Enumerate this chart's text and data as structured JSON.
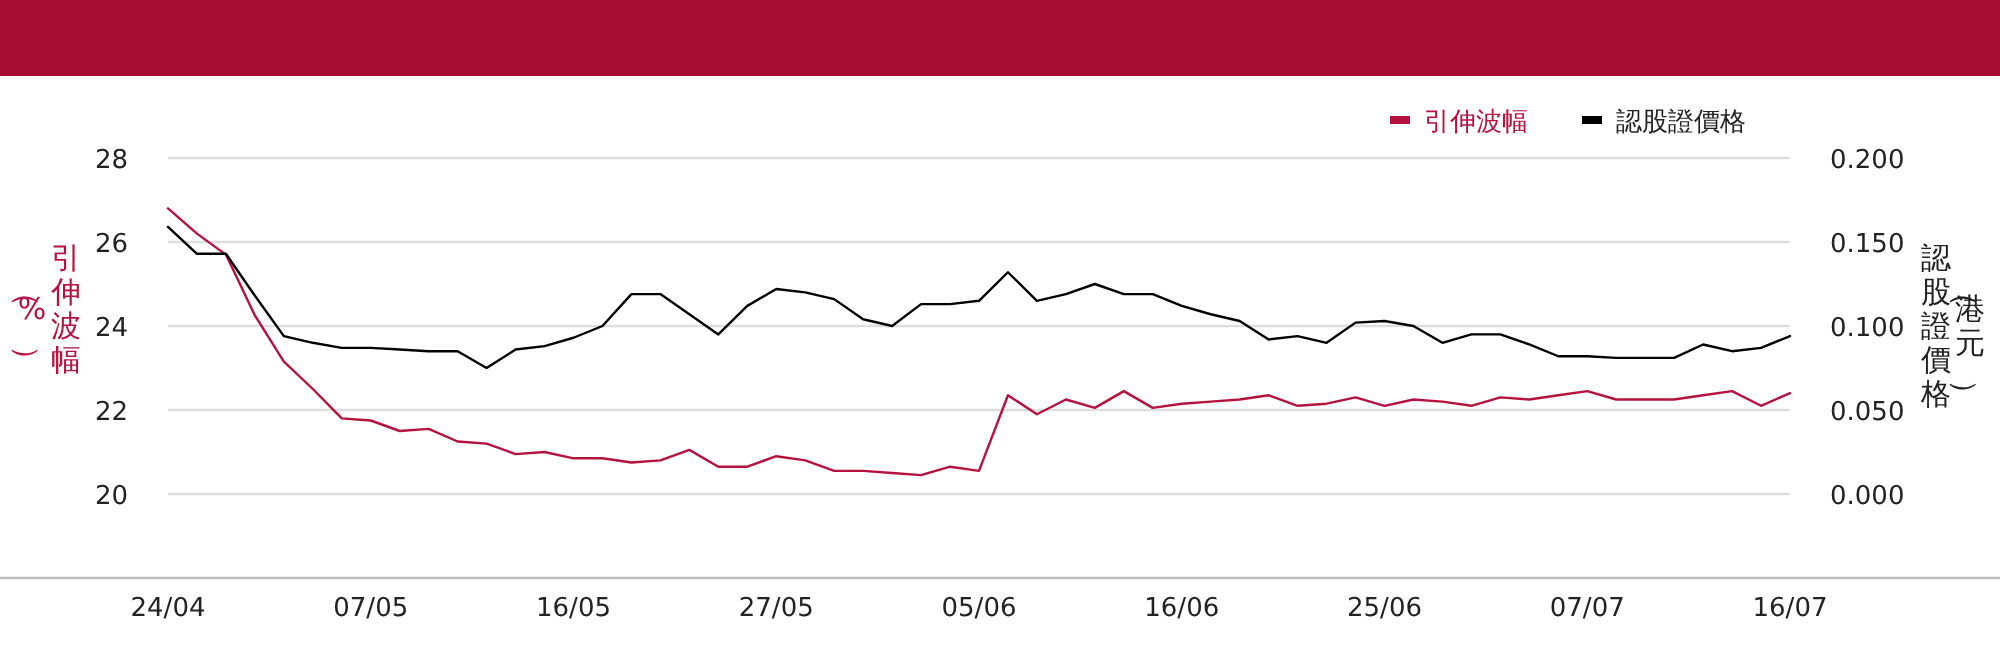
{
  "chart_data": {
    "type": "line",
    "categories": [
      "24/04",
      null,
      null,
      null,
      null,
      null,
      null,
      "07/05",
      null,
      null,
      null,
      null,
      null,
      null,
      "16/05",
      null,
      null,
      null,
      null,
      null,
      null,
      "27/05",
      null,
      null,
      null,
      null,
      null,
      null,
      "05/06",
      null,
      null,
      null,
      null,
      null,
      null,
      "16/06",
      null,
      null,
      null,
      null,
      null,
      null,
      "25/06",
      null,
      null,
      null,
      null,
      null,
      null,
      "07/07",
      null,
      null,
      null,
      null,
      null,
      null,
      "16/07"
    ],
    "ylabel": "引伸波幅（%）",
    "y2label": "認股證價格（港元）",
    "ylim": [
      18,
      28
    ],
    "yticks": [
      20,
      22,
      24,
      26,
      28
    ],
    "y2lim": [
      -0.05,
      0.2
    ],
    "y2ticks": [
      {
        "value": 0,
        "label": "0.000"
      },
      {
        "value": 0.05,
        "label": "0.050"
      },
      {
        "value": 0.1,
        "label": "0.100"
      },
      {
        "value": 0.15,
        "label": "0.150"
      },
      {
        "value": 0.2,
        "label": "0.200"
      }
    ],
    "grid": "y",
    "legend": "top right",
    "series": [
      {
        "name": "引伸波幅",
        "color": "#b5123e",
        "values": [
          26.8,
          26.2,
          25.7,
          24.25,
          23.15,
          22.5,
          21.8,
          21.75,
          21.5,
          21.55,
          21.25,
          21.2,
          20.95,
          21.0,
          20.85,
          20.85,
          20.75,
          20.8,
          21.05,
          20.65,
          20.65,
          20.9,
          20.8,
          20.55,
          20.55,
          20.5,
          20.45,
          20.65,
          20.55,
          22.35,
          21.9,
          22.25,
          22.05,
          22.45,
          22.05,
          22.15,
          22.2,
          22.25,
          22.35,
          22.1,
          22.15,
          22.3,
          22.1,
          22.25,
          22.2,
          22.1,
          22.3,
          22.25,
          22.35,
          22.45,
          22.25,
          22.25,
          22.25,
          22.35,
          22.45,
          22.1,
          22.4
        ]
      },
      {
        "name": "認股證價格",
        "color": "#000000",
        "axis": "y2",
        "values": [
          0.159,
          0.143,
          0.143,
          0.118,
          0.094,
          0.09,
          0.087,
          0.087,
          0.086,
          0.085,
          0.085,
          0.075,
          0.086,
          0.088,
          0.093,
          0.1,
          0.119,
          0.119,
          0.107,
          0.095,
          0.112,
          0.122,
          0.12,
          0.116,
          0.104,
          0.1,
          0.113,
          0.113,
          0.115,
          0.132,
          0.115,
          0.119,
          0.125,
          0.119,
          0.119,
          0.112,
          0.107,
          0.103,
          0.092,
          0.094,
          0.09,
          0.102,
          0.103,
          0.1,
          0.09,
          0.095,
          0.095,
          0.089,
          0.082,
          0.082,
          0.081,
          0.081,
          0.081,
          0.089,
          0.085,
          0.087,
          0.094
        ]
      }
    ]
  }
}
